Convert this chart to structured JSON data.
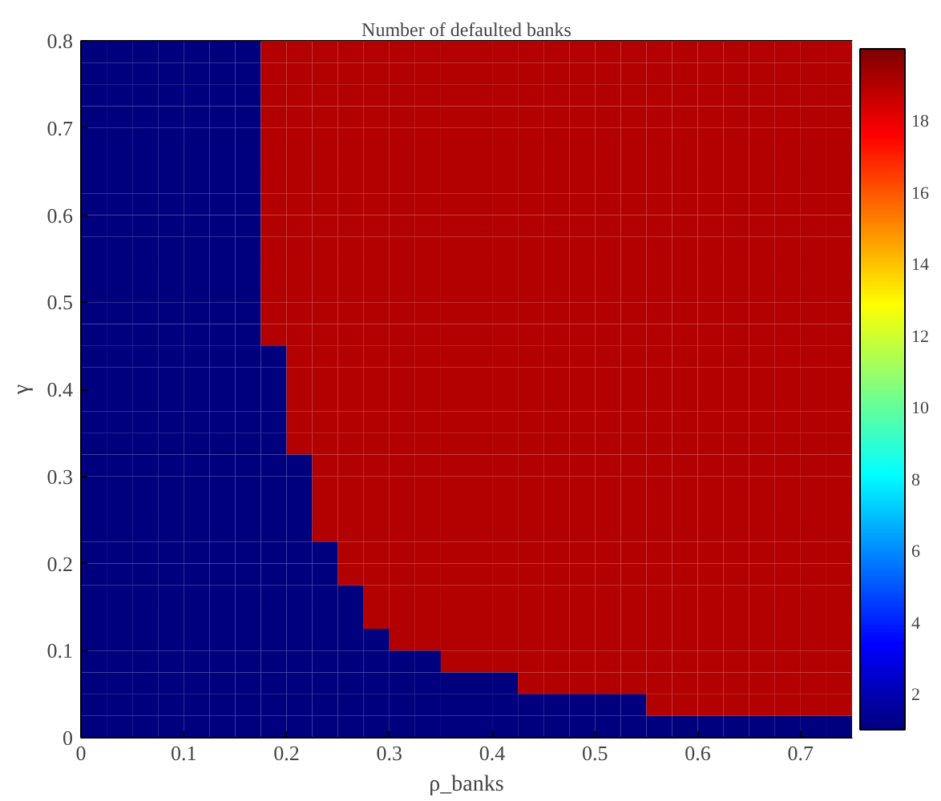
{
  "chart_data": {
    "type": "heatmap",
    "title": "Number of defaulted banks",
    "xlabel": "ρ_banks",
    "ylabel": "γ",
    "x": [
      0.0125,
      0.0375,
      0.0625,
      0.0875,
      0.1125,
      0.1375,
      0.1625,
      0.1875,
      0.2125,
      0.2375,
      0.2625,
      0.2875,
      0.3125,
      0.3375,
      0.3625,
      0.3875,
      0.4125,
      0.4375,
      0.4625,
      0.4875,
      0.5125,
      0.5375,
      0.5625,
      0.5875,
      0.6125,
      0.6375,
      0.6625,
      0.6875,
      0.7125,
      0.7375
    ],
    "y": [
      0.7875,
      0.7625,
      0.7375,
      0.7125,
      0.6875,
      0.6625,
      0.6375,
      0.6125,
      0.5875,
      0.5625,
      0.5375,
      0.5125,
      0.4875,
      0.4625,
      0.4375,
      0.4125,
      0.3875,
      0.3625,
      0.3375,
      0.3125,
      0.2875,
      0.2625,
      0.2375,
      0.2125,
      0.1875,
      0.1625,
      0.1375,
      0.1125,
      0.0875,
      0.0625,
      0.0375,
      0.0125
    ],
    "xlim": [
      0,
      0.75
    ],
    "xticks": [
      0,
      0.1,
      0.2,
      0.3,
      0.4,
      0.5,
      0.6,
      0.7
    ],
    "ylim": [
      0,
      0.8
    ],
    "yticks": [
      0,
      0.1,
      0.2,
      0.3,
      0.4,
      0.5,
      0.6,
      0.7,
      0.8
    ],
    "clim": [
      1,
      20
    ],
    "cticks": [
      2,
      4,
      6,
      8,
      10,
      12,
      14,
      16,
      18
    ],
    "grid": false,
    "cells": [
      [
        1,
        1,
        1,
        1,
        1,
        1,
        1,
        19,
        19,
        19,
        19,
        19,
        19,
        19,
        19,
        19,
        19,
        19,
        19,
        19,
        19,
        19,
        19,
        19,
        19,
        19,
        19,
        19,
        19,
        19
      ],
      [
        1,
        1,
        1,
        1,
        1,
        1,
        1,
        19,
        19,
        19,
        19,
        19,
        19,
        19,
        19,
        19,
        19,
        19,
        19,
        19,
        19,
        19,
        19,
        19,
        19,
        19,
        19,
        19,
        19,
        19
      ],
      [
        1,
        1,
        1,
        1,
        1,
        1,
        1,
        19,
        19,
        19,
        19,
        19,
        19,
        19,
        19,
        19,
        19,
        19,
        19,
        19,
        19,
        19,
        19,
        19,
        19,
        19,
        19,
        19,
        19,
        19
      ],
      [
        1,
        1,
        1,
        1,
        1,
        1,
        1,
        19,
        19,
        19,
        19,
        19,
        19,
        19,
        19,
        19,
        19,
        19,
        19,
        19,
        19,
        19,
        19,
        19,
        19,
        19,
        19,
        19,
        19,
        19
      ],
      [
        1,
        1,
        1,
        1,
        1,
        1,
        1,
        19,
        19,
        19,
        19,
        19,
        19,
        19,
        19,
        19,
        19,
        19,
        19,
        19,
        19,
        19,
        19,
        19,
        19,
        19,
        19,
        19,
        19,
        19
      ],
      [
        1,
        1,
        1,
        1,
        1,
        1,
        1,
        19,
        19,
        19,
        19,
        19,
        19,
        19,
        19,
        19,
        19,
        19,
        19,
        19,
        19,
        19,
        19,
        19,
        19,
        19,
        19,
        19,
        19,
        19
      ],
      [
        1,
        1,
        1,
        1,
        1,
        1,
        1,
        19,
        19,
        19,
        19,
        19,
        19,
        19,
        19,
        19,
        19,
        19,
        19,
        19,
        19,
        19,
        19,
        19,
        19,
        19,
        19,
        19,
        19,
        19
      ],
      [
        1,
        1,
        1,
        1,
        1,
        1,
        1,
        19,
        19,
        19,
        19,
        19,
        19,
        19,
        19,
        19,
        19,
        19,
        19,
        19,
        19,
        19,
        19,
        19,
        19,
        19,
        19,
        19,
        19,
        19
      ],
      [
        1,
        1,
        1,
        1,
        1,
        1,
        1,
        19,
        19,
        19,
        19,
        19,
        19,
        19,
        19,
        19,
        19,
        19,
        19,
        19,
        19,
        19,
        19,
        19,
        19,
        19,
        19,
        19,
        19,
        19
      ],
      [
        1,
        1,
        1,
        1,
        1,
        1,
        1,
        19,
        19,
        19,
        19,
        19,
        19,
        19,
        19,
        19,
        19,
        19,
        19,
        19,
        19,
        19,
        19,
        19,
        19,
        19,
        19,
        19,
        19,
        19
      ],
      [
        1,
        1,
        1,
        1,
        1,
        1,
        1,
        19,
        19,
        19,
        19,
        19,
        19,
        19,
        19,
        19,
        19,
        19,
        19,
        19,
        19,
        19,
        19,
        19,
        19,
        19,
        19,
        19,
        19,
        19
      ],
      [
        1,
        1,
        1,
        1,
        1,
        1,
        1,
        19,
        19,
        19,
        19,
        19,
        19,
        19,
        19,
        19,
        19,
        19,
        19,
        19,
        19,
        19,
        19,
        19,
        19,
        19,
        19,
        19,
        19,
        19
      ],
      [
        1,
        1,
        1,
        1,
        1,
        1,
        1,
        19,
        19,
        19,
        19,
        19,
        19,
        19,
        19,
        19,
        19,
        19,
        19,
        19,
        19,
        19,
        19,
        19,
        19,
        19,
        19,
        19,
        19,
        19
      ],
      [
        1,
        1,
        1,
        1,
        1,
        1,
        1,
        19,
        19,
        19,
        19,
        19,
        19,
        19,
        19,
        19,
        19,
        19,
        19,
        19,
        19,
        19,
        19,
        19,
        19,
        19,
        19,
        19,
        19,
        19
      ],
      [
        1,
        1,
        1,
        1,
        1,
        1,
        1,
        1,
        19,
        19,
        19,
        19,
        19,
        19,
        19,
        19,
        19,
        19,
        19,
        19,
        19,
        19,
        19,
        19,
        19,
        19,
        19,
        19,
        19,
        19
      ],
      [
        1,
        1,
        1,
        1,
        1,
        1,
        1,
        1,
        19,
        19,
        19,
        19,
        19,
        19,
        19,
        19,
        19,
        19,
        19,
        19,
        19,
        19,
        19,
        19,
        19,
        19,
        19,
        19,
        19,
        19
      ],
      [
        1,
        1,
        1,
        1,
        1,
        1,
        1,
        1,
        19,
        19,
        19,
        19,
        19,
        19,
        19,
        19,
        19,
        19,
        19,
        19,
        19,
        19,
        19,
        19,
        19,
        19,
        19,
        19,
        19,
        19
      ],
      [
        1,
        1,
        1,
        1,
        1,
        1,
        1,
        1,
        19,
        19,
        19,
        19,
        19,
        19,
        19,
        19,
        19,
        19,
        19,
        19,
        19,
        19,
        19,
        19,
        19,
        19,
        19,
        19,
        19,
        19
      ],
      [
        1,
        1,
        1,
        1,
        1,
        1,
        1,
        1,
        19,
        19,
        19,
        19,
        19,
        19,
        19,
        19,
        19,
        19,
        19,
        19,
        19,
        19,
        19,
        19,
        19,
        19,
        19,
        19,
        19,
        19
      ],
      [
        1,
        1,
        1,
        1,
        1,
        1,
        1,
        1,
        1,
        19,
        19,
        19,
        19,
        19,
        19,
        19,
        19,
        19,
        19,
        19,
        19,
        19,
        19,
        19,
        19,
        19,
        19,
        19,
        19,
        19
      ],
      [
        1,
        1,
        1,
        1,
        1,
        1,
        1,
        1,
        1,
        19,
        19,
        19,
        19,
        19,
        19,
        19,
        19,
        19,
        19,
        19,
        19,
        19,
        19,
        19,
        19,
        19,
        19,
        19,
        19,
        19
      ],
      [
        1,
        1,
        1,
        1,
        1,
        1,
        1,
        1,
        1,
        19,
        19,
        19,
        19,
        19,
        19,
        19,
        19,
        19,
        19,
        19,
        19,
        19,
        19,
        19,
        19,
        19,
        19,
        19,
        19,
        19
      ],
      [
        1,
        1,
        1,
        1,
        1,
        1,
        1,
        1,
        1,
        19,
        19,
        19,
        19,
        19,
        19,
        19,
        19,
        19,
        19,
        19,
        19,
        19,
        19,
        19,
        19,
        19,
        19,
        19,
        19,
        19
      ],
      [
        1,
        1,
        1,
        1,
        1,
        1,
        1,
        1,
        1,
        1,
        19,
        19,
        19,
        19,
        19,
        19,
        19,
        19,
        19,
        19,
        19,
        19,
        19,
        19,
        19,
        19,
        19,
        19,
        19,
        19
      ],
      [
        1,
        1,
        1,
        1,
        1,
        1,
        1,
        1,
        1,
        1,
        19,
        19,
        19,
        19,
        19,
        19,
        19,
        19,
        19,
        19,
        19,
        19,
        19,
        19,
        19,
        19,
        19,
        19,
        19,
        19
      ],
      [
        1,
        1,
        1,
        1,
        1,
        1,
        1,
        1,
        1,
        1,
        1,
        19,
        19,
        19,
        19,
        19,
        19,
        19,
        19,
        19,
        19,
        19,
        19,
        19,
        19,
        19,
        19,
        19,
        19,
        19
      ],
      [
        1,
        1,
        1,
        1,
        1,
        1,
        1,
        1,
        1,
        1,
        1,
        19,
        19,
        19,
        19,
        19,
        19,
        19,
        19,
        19,
        19,
        19,
        19,
        19,
        19,
        19,
        19,
        19,
        19,
        19
      ],
      [
        1,
        1,
        1,
        1,
        1,
        1,
        1,
        1,
        1,
        1,
        1,
        1,
        19,
        19,
        19,
        19,
        19,
        19,
        19,
        19,
        19,
        19,
        19,
        19,
        19,
        19,
        19,
        19,
        19,
        19
      ],
      [
        1,
        1,
        1,
        1,
        1,
        1,
        1,
        1,
        1,
        1,
        1,
        1,
        1,
        1,
        19,
        19,
        19,
        19,
        19,
        19,
        19,
        19,
        19,
        19,
        19,
        19,
        19,
        19,
        19,
        19
      ],
      [
        1,
        1,
        1,
        1,
        1,
        1,
        1,
        1,
        1,
        1,
        1,
        1,
        1,
        1,
        1,
        1,
        1,
        19,
        19,
        19,
        19,
        19,
        19,
        19,
        19,
        19,
        19,
        19,
        19,
        19
      ],
      [
        1,
        1,
        1,
        1,
        1,
        1,
        1,
        1,
        1,
        1,
        1,
        1,
        1,
        1,
        1,
        1,
        1,
        1,
        1,
        1,
        1,
        1,
        19,
        19,
        19,
        19,
        19,
        19,
        19,
        19
      ],
      [
        1,
        1,
        1,
        1,
        1,
        1,
        1,
        1,
        1,
        1,
        1,
        1,
        1,
        1,
        1,
        1,
        1,
        1,
        1,
        1,
        1,
        1,
        1,
        1,
        1,
        1,
        1,
        1,
        1,
        1
      ]
    ]
  }
}
